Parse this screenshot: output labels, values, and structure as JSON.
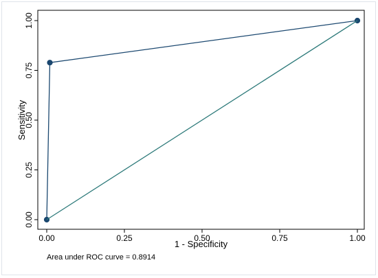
{
  "chart_data": {
    "type": "line",
    "xlabel": "1 - Specificity",
    "ylabel": "Sensitivity",
    "xlim": [
      0,
      1
    ],
    "ylim": [
      0,
      1
    ],
    "xticks": [
      0,
      0.25,
      0.5,
      0.75,
      1
    ],
    "yticks": [
      0,
      0.25,
      0.5,
      0.75,
      1
    ],
    "xtick_labels": [
      "0.00",
      "0.25",
      "0.50",
      "0.75",
      "1.00"
    ],
    "ytick_labels": [
      "0.00",
      "0.25",
      "0.50",
      "0.75",
      "1.00"
    ],
    "grid": false,
    "series": [
      {
        "style": "line-with-markers",
        "color": "#1a476f",
        "x": [
          0,
          0.01,
          1
        ],
        "y": [
          0,
          0.789,
          1
        ]
      },
      {
        "style": "line",
        "color": "#2d7a7a",
        "x": [
          0,
          1
        ],
        "y": [
          0,
          1
        ]
      }
    ],
    "note": "Area under ROC curve = 0.8914"
  }
}
